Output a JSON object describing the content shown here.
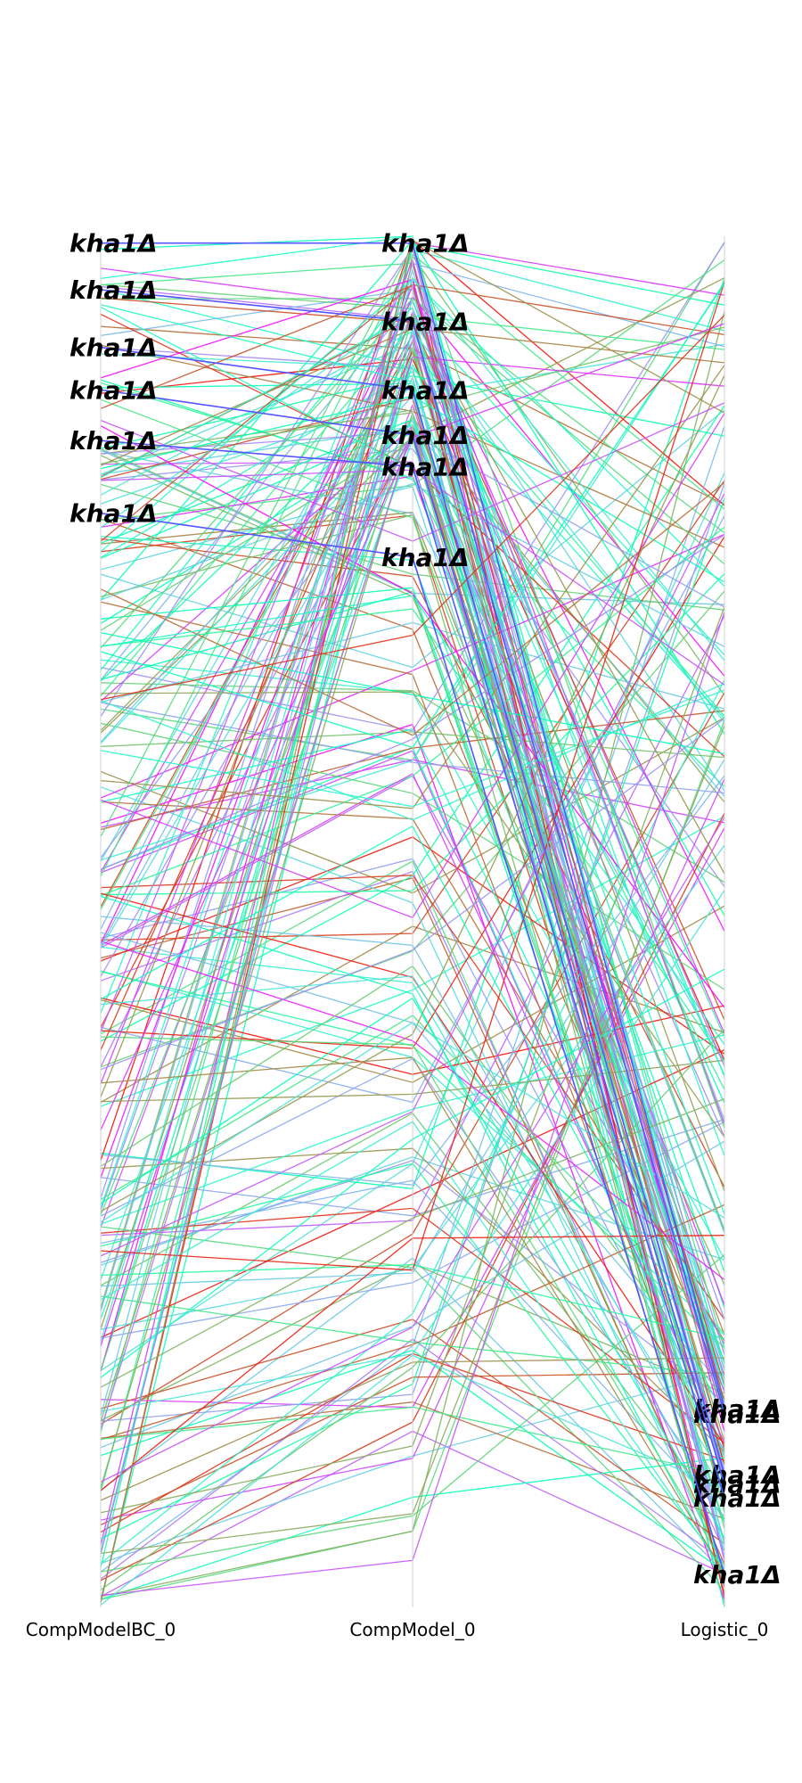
{
  "chart_data": {
    "type": "parallel_coordinates",
    "axes": [
      "CompModelBC_0",
      "CompModel_0",
      "Logistic_0"
    ],
    "value_range": [
      0,
      1
    ],
    "colormap": "rainbow",
    "highlight_label": "kha1Δ",
    "highlighted": [
      {
        "name": "kha1Δ",
        "values": [
          0.995,
          0.995,
          0.145
        ]
      },
      {
        "name": "kha1Δ",
        "values": [
          0.961,
          0.938,
          0.141
        ]
      },
      {
        "name": "kha1Δ",
        "values": [
          0.919,
          0.888,
          0.097
        ]
      },
      {
        "name": "kha1Δ",
        "values": [
          0.888,
          0.855,
          0.09
        ]
      },
      {
        "name": "kha1Δ",
        "values": [
          0.851,
          0.832,
          0.08
        ]
      },
      {
        "name": "kha1Δ",
        "values": [
          0.798,
          0.766,
          0.024
        ]
      }
    ],
    "background_lines": {
      "count": 260,
      "note": "dense unlabeled rainbow-colored polylines connecting the three axes"
    }
  }
}
